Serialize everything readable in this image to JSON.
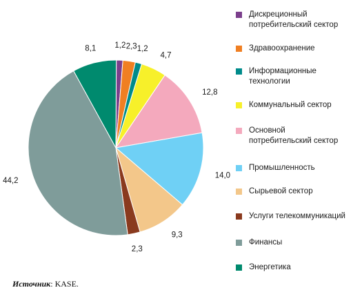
{
  "chart_data": {
    "type": "pie",
    "slices": [
      {
        "label": "Дискреционный потребительский сектор",
        "value": 1.2,
        "value_label": "1,2",
        "color": "#7b3f8c"
      },
      {
        "label": "Здравоохранение",
        "value": 2.3,
        "value_label": "2,3",
        "color": "#f07f22"
      },
      {
        "label": "Информационные технологии",
        "value": 1.2,
        "value_label": "1,2",
        "color": "#008b8b"
      },
      {
        "label": "Коммунальный сектор",
        "value": 4.7,
        "value_label": "4,7",
        "color": "#f7f02a"
      },
      {
        "label": "Основной потребительский сектор",
        "value": 12.8,
        "value_label": "12,8",
        "color": "#f4a9bd"
      },
      {
        "label": "Промышленность",
        "value": 14.0,
        "value_label": "14,0",
        "color": "#6fd0f5"
      },
      {
        "label": "Сырьевой сектор",
        "value": 9.3,
        "value_label": "9,3",
        "color": "#f3c78a"
      },
      {
        "label": "Услуги телекоммуникаций",
        "value": 2.3,
        "value_label": "2,3",
        "color": "#8a3a1e"
      },
      {
        "label": "Финансы",
        "value": 44.2,
        "value_label": "44,2",
        "color": "#7f9c9a"
      },
      {
        "label": "Энергетика",
        "value": 8.1,
        "value_label": "8,1",
        "color": "#008a6e"
      }
    ],
    "legend_placement": "right"
  },
  "legend": [
    {
      "text": "Дискреционный\nпотребительский сектор",
      "color": "#7b3f8c",
      "icon": "legend-swatch"
    },
    {
      "text": "Здравоохранение",
      "color": "#f07f22",
      "icon": "legend-swatch"
    },
    {
      "text": "Информационные\nтехнологии",
      "color": "#008b8b",
      "icon": "legend-swatch"
    },
    {
      "text": "Коммунальный сектор",
      "color": "#f7f02a",
      "icon": "legend-swatch"
    },
    {
      "text": "Основной\nпотребительский сектор",
      "color": "#f4a9bd",
      "icon": "legend-swatch"
    },
    {
      "text": "Промышленность",
      "color": "#6fd0f5",
      "icon": "legend-swatch"
    },
    {
      "text": "Сырьевой сектор",
      "color": "#f3c78a",
      "icon": "legend-swatch"
    },
    {
      "text": "Услуги телекоммуникаций",
      "color": "#8a3a1e",
      "icon": "legend-swatch"
    },
    {
      "text": "Финансы",
      "color": "#7f9c9a",
      "icon": "legend-swatch"
    },
    {
      "text": "Энергетика",
      "color": "#008a6e",
      "icon": "legend-swatch"
    }
  ],
  "source": {
    "label": "Источник",
    "text": ": KASE."
  }
}
